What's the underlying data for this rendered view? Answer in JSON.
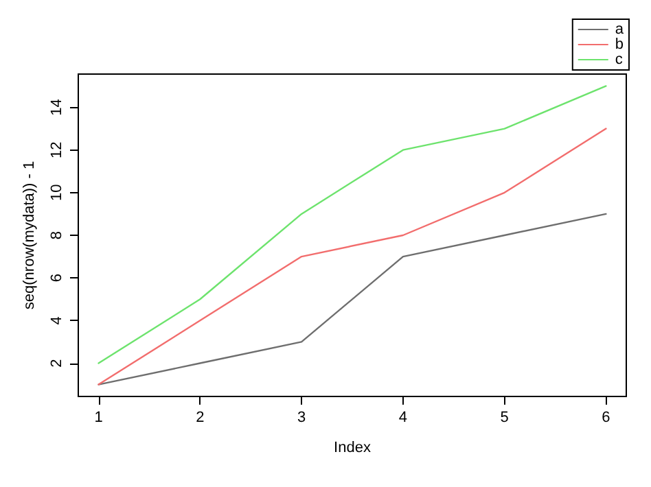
{
  "chart_data": {
    "type": "line",
    "xlabel": "Index",
    "ylabel": "seq(nrow(mydata)) - 1",
    "x": [
      1,
      2,
      3,
      4,
      5,
      6
    ],
    "series": [
      {
        "name": "a",
        "color": "#6e6e6e",
        "values": [
          1,
          2,
          3,
          7,
          8,
          9
        ]
      },
      {
        "name": "b",
        "color": "#f26d6d",
        "values": [
          1,
          4,
          7,
          8,
          10,
          13
        ]
      },
      {
        "name": "c",
        "color": "#6de36d",
        "values": [
          2,
          5,
          9,
          12,
          13,
          15
        ]
      }
    ],
    "xlim": [
      0.8,
      6.2
    ],
    "xticks": [
      1,
      2,
      3,
      4,
      5,
      6
    ],
    "ylim": [
      0.44,
      15.56
    ],
    "yticks": [
      2,
      4,
      6,
      8,
      10,
      12,
      14
    ],
    "grid": false,
    "legend": "top right",
    "marker": "none",
    "line_style": "solid"
  }
}
